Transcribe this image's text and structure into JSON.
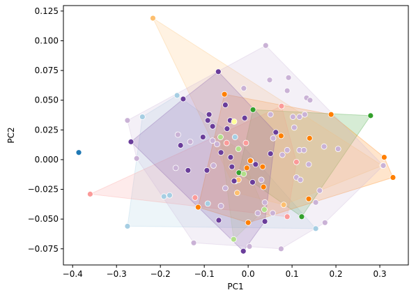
{
  "chart_data": {
    "type": "scatter",
    "hull": true,
    "xlabel": "PC1",
    "ylabel": "PC2",
    "xlim": [
      -0.421,
      0.365
    ],
    "ylim": [
      -0.0886,
      0.1296
    ],
    "xticks": [
      {
        "value": -0.4,
        "label": "−0.4"
      },
      {
        "value": -0.3,
        "label": "−0.3"
      },
      {
        "value": -0.2,
        "label": "−0.2"
      },
      {
        "value": -0.1,
        "label": "−0.1"
      },
      {
        "value": 0,
        "label": "0.0"
      },
      0.1,
      0.2,
      0.3
    ],
    "yticks": [
      {
        "value": -0.075,
        "label": "−0.075"
      },
      {
        "value": -0.05,
        "label": "−0.050"
      },
      {
        "value": -0.025,
        "label": "−0.025"
      },
      {
        "value": 0,
        "label": "0.000"
      },
      0.025,
      {
        "value": 0.05,
        "label": "0.050"
      },
      0.075,
      {
        "value": 0.1,
        "label": "0.100"
      },
      0.125
    ],
    "series": [
      {
        "color": "#1f78b4",
        "x": [
          -0.386
        ],
        "y": [
          0.006
        ]
      },
      {
        "color": "#a6cee3",
        "x": [
          -0.241,
          -0.162,
          -0.275,
          -0.192,
          -0.179,
          -0.092,
          -0.029,
          -0.03,
          0.154
        ],
        "y": [
          0.036,
          0.054,
          -0.056,
          -0.031,
          -0.03,
          -0.037,
          -0.018,
          0.019,
          -0.058
        ]
      },
      {
        "color": "#33a02c",
        "x": [
          0.279,
          0.011,
          0.122,
          -0.021
        ],
        "y": [
          0.037,
          0.042,
          -0.048,
          -0.011
        ]
      },
      {
        "color": "#b2df8a",
        "x": [
          -0.063,
          -0.022,
          0.037,
          -0.033,
          -0.01
        ],
        "y": [
          0.019,
          0.009,
          -0.042,
          -0.067,
          -0.012
        ]
      },
      {
        "color": "#fb9a99",
        "x": [
          -0.36,
          0.076,
          -0.121,
          -0.049,
          -0.005,
          0.11,
          0.089,
          0.006
        ],
        "y": [
          -0.029,
          0.045,
          -0.032,
          0.014,
          0.014,
          -0.002,
          -0.048,
          -0.001
        ]
      },
      {
        "color": "#ff7f00",
        "x": [
          -0.054,
          0.189,
          0.31,
          0.33,
          -0.114,
          0.0,
          0.14,
          0.138,
          0.005,
          0.033,
          0.035,
          -0.003,
          0.075
        ],
        "y": [
          0.055,
          0.038,
          0.002,
          -0.015,
          -0.04,
          -0.053,
          0.018,
          -0.033,
          -0.001,
          -0.006,
          -0.023,
          -0.007,
          0.02
        ]
      },
      {
        "color": "#fdbf6f",
        "x": [
          -0.217,
          -0.025,
          -0.022,
          0.081,
          0.306
        ],
        "y": [
          0.119,
          -0.028,
          -0.017,
          -0.038,
          -0.005
        ]
      },
      {
        "color": "#6a3d9a",
        "x": [
          -0.068,
          -0.148,
          -0.267,
          -0.103,
          -0.089,
          -0.154,
          -0.092,
          -0.052,
          -0.081,
          -0.041,
          -0.011,
          0.038,
          -0.067,
          -0.048,
          -0.062,
          -0.008,
          -0.137,
          -0.094,
          -0.037,
          -0.032,
          0.01,
          0.063,
          0.051,
          0.017,
          -0.04
        ],
        "y": [
          0.074,
          0.051,
          0.015,
          0.019,
          0.038,
          0.012,
          0.033,
          0.046,
          0.028,
          0.033,
          -0.077,
          -0.052,
          -0.051,
          0.026,
          0.006,
          0.035,
          -0.009,
          -0.009,
          -0.006,
          -0.018,
          -0.019,
          0.023,
          0.005,
          -0.004,
          0.002
        ]
      },
      {
        "color": "#cab2d6",
        "x": [
          0.04,
          -0.01,
          0.049,
          0.089,
          0.092,
          0.133,
          0.141,
          -0.275,
          -0.254,
          -0.165,
          -0.124,
          0.003,
          0.075,
          0.154,
          0.175,
          0.308,
          0.173,
          0.205,
          0.102,
          0.117,
          0.129,
          -0.16,
          -0.071,
          -0.052,
          -0.081,
          0.057,
          0.078,
          0.089,
          0.105,
          0.117,
          0.127,
          0.138,
          0.03,
          0.038,
          -0.062,
          -0.079,
          0.163,
          0.11,
          0.119,
          -0.132,
          0.056,
          0.022,
          0.051
        ],
        "y": [
          0.096,
          0.06,
          0.067,
          0.058,
          0.069,
          0.052,
          0.05,
          0.033,
          0.001,
          -0.007,
          -0.07,
          -0.073,
          -0.075,
          -0.036,
          -0.053,
          -0.005,
          0.011,
          0.009,
          0.036,
          0.036,
          0.038,
          0.021,
          0.013,
          -0.024,
          0.016,
          0.018,
          0.004,
          0.008,
          0.027,
          0.008,
          0.008,
          -0.004,
          -0.017,
          -0.036,
          -0.039,
          -0.005,
          -0.026,
          -0.015,
          -0.017,
          0.015,
          -0.045,
          -0.045,
          0.038
        ]
      },
      {
        "color": "#ffff99",
        "x": [
          -0.032
        ],
        "y": [
          0.032
        ]
      }
    ]
  }
}
